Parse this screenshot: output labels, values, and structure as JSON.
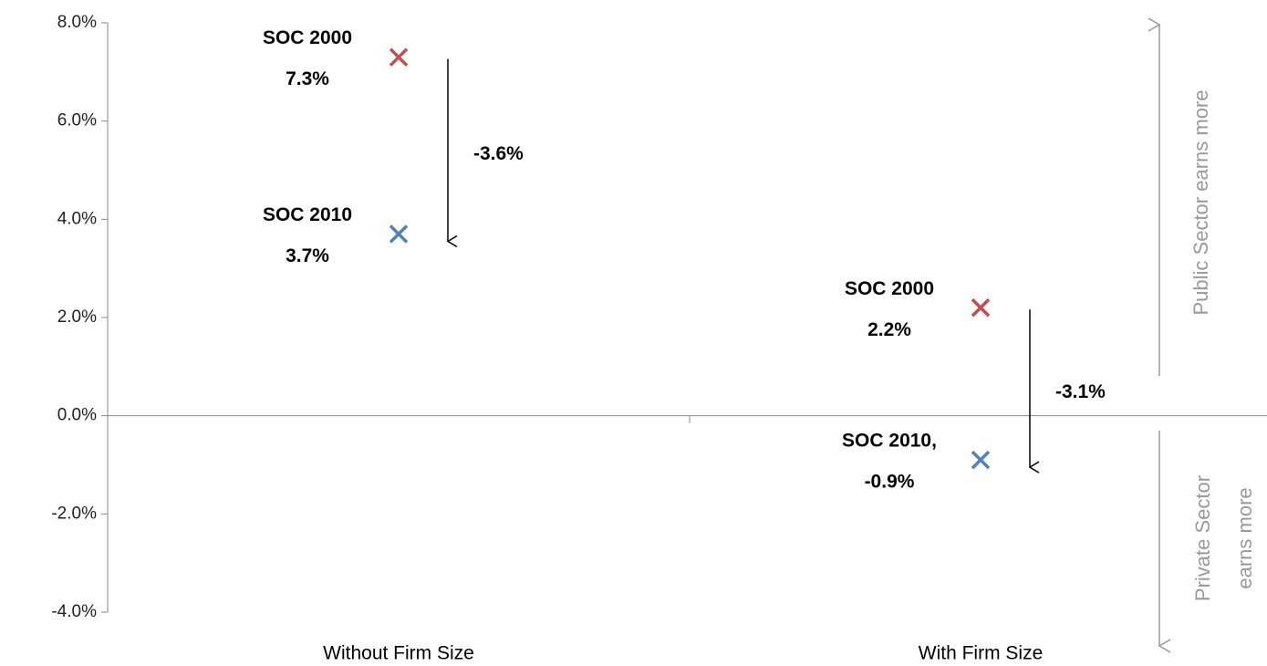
{
  "chart_data": {
    "type": "scatter",
    "categories": [
      "Without Firm Size",
      "With Firm Size"
    ],
    "series": [
      {
        "color": "#c0504d",
        "values": [
          7.3,
          2.2
        ],
        "labels": [
          "SOC 2000",
          "SOC 2000"
        ],
        "value_labels": [
          "7.3%",
          "2.2%"
        ]
      },
      {
        "color": "#4f81bd",
        "values": [
          3.7,
          -0.9
        ],
        "labels": [
          "SOC 2010",
          "SOC 2010,"
        ],
        "value_labels": [
          "3.7%",
          "-0.9%"
        ]
      }
    ],
    "change_labels": [
      "-3.6%",
      "-3.1%"
    ],
    "ylim": [
      -4,
      8
    ],
    "yticks": [
      {
        "value": -4,
        "label": "-4.0%"
      },
      {
        "value": -2,
        "label": "-2.0%"
      },
      {
        "value": 0,
        "label": "0.0%"
      },
      {
        "value": 2,
        "label": "2.0%"
      },
      {
        "value": 4,
        "label": "4.0%"
      },
      {
        "value": 6,
        "label": "6.0%"
      },
      {
        "value": 8,
        "label": "8.0%"
      }
    ],
    "side_labels": {
      "up": "Public Sector earns more",
      "down": [
        "Private Sector",
        "earns more"
      ]
    }
  }
}
